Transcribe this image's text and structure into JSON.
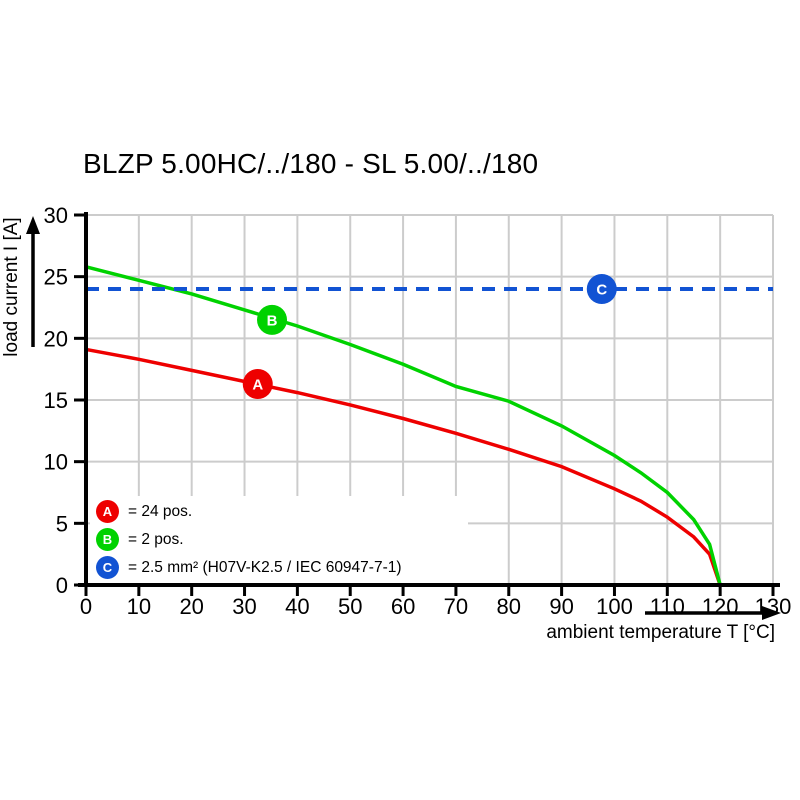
{
  "chart_data": {
    "type": "line",
    "title": "BLZP 5.00HC/../180 - SL 5.00/../180",
    "xlabel": "ambient temperature T [°C]",
    "ylabel": "load current I [A]",
    "xlim": [
      0,
      130
    ],
    "ylim": [
      0,
      30
    ],
    "xticks": [
      0,
      10,
      20,
      30,
      40,
      50,
      60,
      70,
      80,
      90,
      100,
      110,
      120,
      130
    ],
    "yticks": [
      0,
      5,
      10,
      15,
      20,
      25,
      30
    ],
    "grid": true,
    "grid_color": "#cccccc",
    "legend_position": "bottom-left-inside",
    "series": [
      {
        "name": "A",
        "legend_label": "= 24 pos.",
        "color": "#ee0000",
        "style": "solid",
        "x": [
          0,
          10,
          20,
          30,
          40,
          50,
          60,
          70,
          80,
          90,
          100,
          105,
          110,
          115,
          118,
          120
        ],
        "values": [
          19.1,
          18.3,
          17.4,
          16.5,
          15.6,
          14.6,
          13.5,
          12.3,
          11.0,
          9.6,
          7.8,
          6.8,
          5.5,
          3.9,
          2.5,
          0
        ],
        "marker_point": {
          "x": 32.5,
          "y": 16.3
        }
      },
      {
        "name": "B",
        "legend_label": "= 2 pos.",
        "color": "#00d200",
        "style": "solid",
        "x": [
          0,
          10,
          20,
          30,
          40,
          50,
          60,
          70,
          80,
          90,
          100,
          105,
          110,
          115,
          118,
          120
        ],
        "values": [
          25.8,
          24.7,
          23.6,
          22.3,
          21.0,
          19.5,
          17.9,
          16.1,
          14.9,
          12.9,
          10.5,
          9.1,
          7.5,
          5.3,
          3.3,
          0
        ],
        "marker_point": {
          "x": 35.2,
          "y": 21.5
        }
      },
      {
        "name": "C",
        "legend_label": "= 2.5 mm² (H07V-K2.5 / IEC 60947-7-1)",
        "color": "#1253d3",
        "style": "dashed",
        "x": [
          0,
          130
        ],
        "values": [
          24,
          24
        ],
        "marker_point": {
          "x": 97.6,
          "y": 24
        }
      }
    ]
  }
}
